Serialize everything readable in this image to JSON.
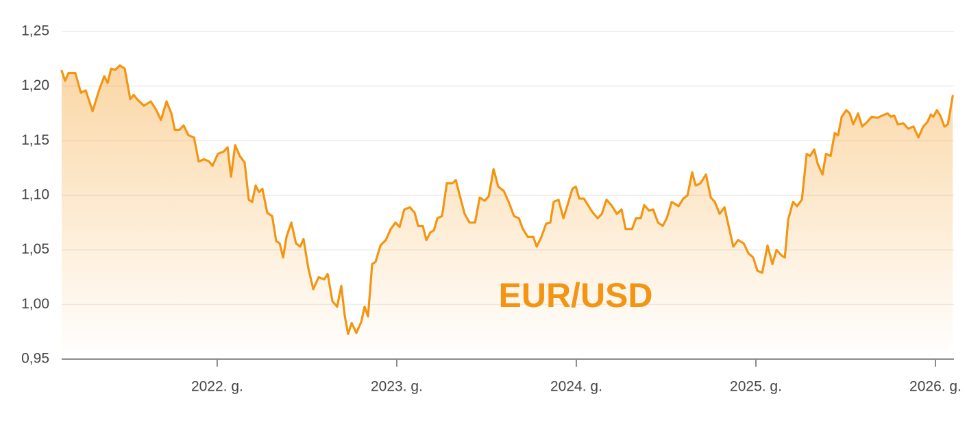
{
  "chart_data": {
    "type": "line",
    "annotation": "EUR/USD",
    "color": "#f39512",
    "area": true,
    "grid": true,
    "x": [
      2021.134,
      2021.153,
      2021.172,
      2021.21,
      2021.241,
      2021.268,
      2021.306,
      2021.344,
      2021.371,
      2021.39,
      2021.409,
      2021.432,
      2021.458,
      2021.485,
      2021.516,
      2021.535,
      2021.554,
      2021.592,
      2021.63,
      2021.661,
      2021.687,
      2021.718,
      2021.745,
      2021.764,
      2021.79,
      2021.813,
      2021.84,
      2021.871,
      2021.897,
      2021.928,
      2021.955,
      2021.974,
      2022.004,
      2022.035,
      2022.058,
      2022.077,
      2022.1,
      2022.126,
      2022.153,
      2022.176,
      2022.195,
      2022.214,
      2022.233,
      2022.252,
      2022.279,
      2022.306,
      2022.329,
      2022.348,
      2022.367,
      2022.386,
      2022.413,
      2022.439,
      2022.462,
      2022.481,
      2022.508,
      2022.535,
      2022.565,
      2022.596,
      2022.615,
      2022.642,
      2022.668,
      2022.691,
      2022.71,
      2022.729,
      2022.749,
      2022.775,
      2022.802,
      2022.821,
      2022.84,
      2022.863,
      2022.882,
      2022.909,
      2022.939,
      2022.966,
      2022.993,
      2023.016,
      2023.042,
      2023.073,
      2023.1,
      2023.119,
      2023.145,
      2023.165,
      2023.187,
      2023.207,
      2023.226,
      2023.252,
      2023.279,
      2023.31,
      2023.329,
      2023.355,
      2023.378,
      2023.405,
      2023.436,
      2023.462,
      2023.489,
      2023.512,
      2023.539,
      2023.565,
      2023.596,
      2023.623,
      2023.653,
      2023.68,
      2023.703,
      2023.729,
      2023.76,
      2023.779,
      2023.806,
      2023.832,
      2023.855,
      2023.874,
      2023.901,
      2023.928,
      2023.951,
      2023.978,
      2023.997,
      2024.016,
      2024.042,
      2024.065,
      2024.092,
      2024.119,
      2024.142,
      2024.168,
      2024.195,
      2024.226,
      2024.252,
      2024.275,
      2024.31,
      2024.332,
      2024.359,
      2024.378,
      2024.405,
      2024.428,
      2024.455,
      2024.481,
      2024.504,
      2024.531,
      2024.569,
      2024.596,
      2024.619,
      2024.645,
      2024.665,
      2024.691,
      2024.722,
      2024.749,
      2024.771,
      2024.798,
      2024.825,
      2024.848,
      2024.874,
      2024.901,
      2024.932,
      2024.958,
      2024.985,
      2025.008,
      2025.035,
      2025.065,
      2025.092,
      2025.115,
      2025.142,
      2025.161,
      2025.18,
      2025.207,
      2025.229,
      2025.256,
      2025.283,
      2025.302,
      2025.325,
      2025.344,
      2025.371,
      2025.39,
      2025.416,
      2025.439,
      2025.458,
      2025.478,
      2025.504,
      2025.523,
      2025.542,
      2025.569,
      2025.592,
      2025.619,
      2025.645,
      2025.676,
      2025.703,
      2025.733,
      2025.752,
      2025.771,
      2025.79,
      2025.821,
      2025.848,
      2025.878,
      2025.905,
      2025.932,
      2025.955,
      2025.974,
      2025.989,
      2026.008,
      2026.027,
      2026.05,
      2026.069,
      2026.096
    ],
    "values": [
      1.214,
      1.205,
      1.212,
      1.212,
      1.194,
      1.196,
      1.177,
      1.197,
      1.209,
      1.203,
      1.216,
      1.215,
      1.219,
      1.216,
      1.188,
      1.192,
      1.188,
      1.182,
      1.186,
      1.178,
      1.169,
      1.186,
      1.175,
      1.16,
      1.16,
      1.164,
      1.155,
      1.153,
      1.131,
      1.133,
      1.131,
      1.127,
      1.138,
      1.14,
      1.144,
      1.117,
      1.146,
      1.136,
      1.13,
      1.096,
      1.094,
      1.109,
      1.103,
      1.106,
      1.084,
      1.081,
      1.058,
      1.056,
      1.043,
      1.062,
      1.075,
      1.056,
      1.053,
      1.06,
      1.033,
      1.014,
      1.025,
      1.023,
      1.028,
      1.003,
      0.998,
      1.017,
      0.99,
      0.973,
      0.983,
      0.974,
      0.984,
      0.998,
      0.989,
      1.037,
      1.039,
      1.054,
      1.059,
      1.069,
      1.075,
      1.071,
      1.087,
      1.089,
      1.084,
      1.072,
      1.072,
      1.059,
      1.066,
      1.068,
      1.079,
      1.081,
      1.111,
      1.111,
      1.114,
      1.097,
      1.083,
      1.075,
      1.075,
      1.098,
      1.095,
      1.099,
      1.124,
      1.108,
      1.104,
      1.094,
      1.081,
      1.079,
      1.069,
      1.062,
      1.062,
      1.053,
      1.062,
      1.074,
      1.075,
      1.094,
      1.096,
      1.079,
      1.091,
      1.106,
      1.108,
      1.097,
      1.097,
      1.091,
      1.084,
      1.079,
      1.083,
      1.096,
      1.091,
      1.083,
      1.087,
      1.069,
      1.069,
      1.079,
      1.079,
      1.091,
      1.086,
      1.087,
      1.075,
      1.072,
      1.079,
      1.094,
      1.09,
      1.097,
      1.1,
      1.121,
      1.109,
      1.111,
      1.119,
      1.098,
      1.094,
      1.083,
      1.089,
      1.072,
      1.053,
      1.059,
      1.056,
      1.047,
      1.043,
      1.031,
      1.029,
      1.054,
      1.037,
      1.05,
      1.045,
      1.043,
      1.078,
      1.094,
      1.09,
      1.096,
      1.138,
      1.136,
      1.142,
      1.129,
      1.119,
      1.138,
      1.136,
      1.157,
      1.155,
      1.172,
      1.178,
      1.175,
      1.165,
      1.175,
      1.163,
      1.167,
      1.172,
      1.171,
      1.173,
      1.175,
      1.172,
      1.173,
      1.165,
      1.166,
      1.161,
      1.163,
      1.153,
      1.163,
      1.167,
      1.174,
      1.172,
      1.178,
      1.173,
      1.163,
      1.165,
      1.191
    ],
    "xlim": [
      2021.134,
      2026.103
    ],
    "xticks": [
      {
        "value": 2022,
        "label": "2022. g."
      },
      {
        "value": 2023,
        "label": "2023. g."
      },
      {
        "value": 2024,
        "label": "2024. g."
      },
      {
        "value": 2025,
        "label": "2025. g."
      },
      {
        "value": 2026,
        "label": "2026. g."
      }
    ],
    "ylim": [
      0.95,
      1.25
    ],
    "yticks": [
      {
        "value": 0.95,
        "label": "0,95"
      },
      {
        "value": 1.0,
        "label": "1,00"
      },
      {
        "value": 1.05,
        "label": "1,05"
      },
      {
        "value": 1.1,
        "label": "1,10"
      },
      {
        "value": 1.15,
        "label": "1,15"
      },
      {
        "value": 1.2,
        "label": "1,20"
      },
      {
        "value": 1.25,
        "label": "1,25"
      }
    ]
  }
}
